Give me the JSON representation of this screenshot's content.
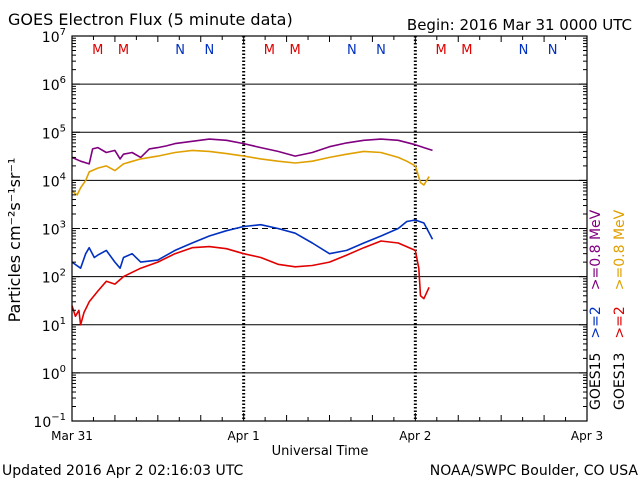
{
  "header": {
    "title": "GOES Electron Flux (5 minute data)",
    "begin": "Begin: 2016 Mar 31 0000 UTC"
  },
  "footer": {
    "updated": "Updated 2016 Apr  2 02:16:03 UTC",
    "credit": "NOAA/SWPC Boulder, CO USA"
  },
  "colors": {
    "goes15_08": "#800080",
    "goes13_08": "#e0a000",
    "goes15_2": "#0030c0",
    "goes13_2": "#e00000",
    "m_marker": "#e00000",
    "n_marker": "#0030c0"
  },
  "chart_data": {
    "type": "line",
    "title": "GOES Electron Flux (5 minute data)",
    "xlabel": "Universal Time",
    "ylabel": "Particles cm⁻²s⁻¹sr⁻¹",
    "y_scale": "log",
    "ylim_exp": [
      -1,
      7
    ],
    "xlim_days": [
      0,
      3
    ],
    "x_ticks": [
      "Mar 31",
      "Apr 1",
      "Apr 2",
      "Apr 3"
    ],
    "y_tick_exponents": [
      -1,
      0,
      1,
      2,
      3,
      4,
      5,
      6,
      7
    ],
    "threshold_exp": 3,
    "grid": true,
    "markers": [
      {
        "label": "M",
        "day": 0.15
      },
      {
        "label": "M",
        "day": 0.3
      },
      {
        "label": "N",
        "day": 0.63
      },
      {
        "label": "N",
        "day": 0.8
      },
      {
        "label": "M",
        "day": 1.15
      },
      {
        "label": "M",
        "day": 1.3
      },
      {
        "label": "N",
        "day": 1.63
      },
      {
        "label": "N",
        "day": 1.8
      },
      {
        "label": "M",
        "day": 2.15
      },
      {
        "label": "M",
        "day": 2.3
      },
      {
        "label": "N",
        "day": 2.63
      },
      {
        "label": "N",
        "day": 2.8
      }
    ],
    "series": [
      {
        "name": "GOES15 >=0.8 MeV",
        "x": [
          0,
          0.05,
          0.1,
          0.12,
          0.15,
          0.2,
          0.25,
          0.28,
          0.3,
          0.35,
          0.4,
          0.45,
          0.5,
          0.55,
          0.6,
          0.7,
          0.8,
          0.9,
          1.0,
          1.1,
          1.2,
          1.3,
          1.4,
          1.5,
          1.6,
          1.7,
          1.8,
          1.9,
          2.0,
          2.05,
          2.1
        ],
        "y": [
          30000,
          25000,
          22000,
          45000,
          48000,
          38000,
          42000,
          28000,
          35000,
          38000,
          30000,
          45000,
          48000,
          52000,
          58000,
          65000,
          72000,
          68000,
          58000,
          48000,
          40000,
          32000,
          38000,
          50000,
          60000,
          68000,
          72000,
          68000,
          55000,
          48000,
          42000
        ]
      },
      {
        "name": "GOES13 >=0.8 MeV",
        "x": [
          0,
          0.03,
          0.05,
          0.08,
          0.1,
          0.15,
          0.2,
          0.25,
          0.3,
          0.4,
          0.5,
          0.6,
          0.7,
          0.8,
          0.9,
          1.0,
          1.1,
          1.2,
          1.3,
          1.4,
          1.5,
          1.6,
          1.7,
          1.8,
          1.9,
          1.95,
          2.0,
          2.03,
          2.05,
          2.08
        ],
        "y": [
          6000,
          5000,
          7000,
          10000,
          15000,
          18000,
          20000,
          16000,
          22000,
          28000,
          32000,
          38000,
          42000,
          40000,
          36000,
          32000,
          28000,
          25000,
          23000,
          25000,
          30000,
          35000,
          40000,
          38000,
          30000,
          25000,
          20000,
          9000,
          8000,
          12000
        ]
      },
      {
        "name": "GOES15 >=2 MeV",
        "x": [
          0,
          0.05,
          0.08,
          0.1,
          0.13,
          0.15,
          0.2,
          0.25,
          0.28,
          0.3,
          0.35,
          0.4,
          0.5,
          0.6,
          0.7,
          0.8,
          0.9,
          1.0,
          1.1,
          1.2,
          1.3,
          1.4,
          1.5,
          1.6,
          1.7,
          1.8,
          1.9,
          1.95,
          2.0,
          2.05,
          2.1
        ],
        "y": [
          200,
          150,
          300,
          400,
          250,
          280,
          350,
          200,
          150,
          250,
          300,
          200,
          220,
          350,
          500,
          700,
          900,
          1100,
          1200,
          1000,
          800,
          500,
          300,
          350,
          500,
          700,
          1000,
          1400,
          1500,
          1300,
          600
        ]
      },
      {
        "name": "GOES13 >=2 MeV",
        "x": [
          0,
          0.02,
          0.04,
          0.05,
          0.07,
          0.1,
          0.15,
          0.2,
          0.25,
          0.3,
          0.4,
          0.5,
          0.6,
          0.7,
          0.8,
          0.9,
          1.0,
          1.1,
          1.2,
          1.3,
          1.4,
          1.5,
          1.6,
          1.7,
          1.8,
          1.9,
          2.0,
          2.02,
          2.03,
          2.05,
          2.08
        ],
        "y": [
          25,
          15,
          20,
          10,
          18,
          30,
          50,
          80,
          70,
          100,
          150,
          200,
          300,
          400,
          420,
          380,
          300,
          250,
          180,
          160,
          170,
          200,
          280,
          400,
          550,
          500,
          350,
          150,
          40,
          35,
          60
        ]
      }
    ],
    "legend": {
      "placement": "right",
      "rows": [
        {
          "sat": "GOES15",
          "entries": [
            ">=2",
            ">=0.8 MeV"
          ]
        },
        {
          "sat": "GOES13",
          "entries": [
            ">=2",
            ">=0.8 MeV"
          ]
        }
      ]
    }
  }
}
